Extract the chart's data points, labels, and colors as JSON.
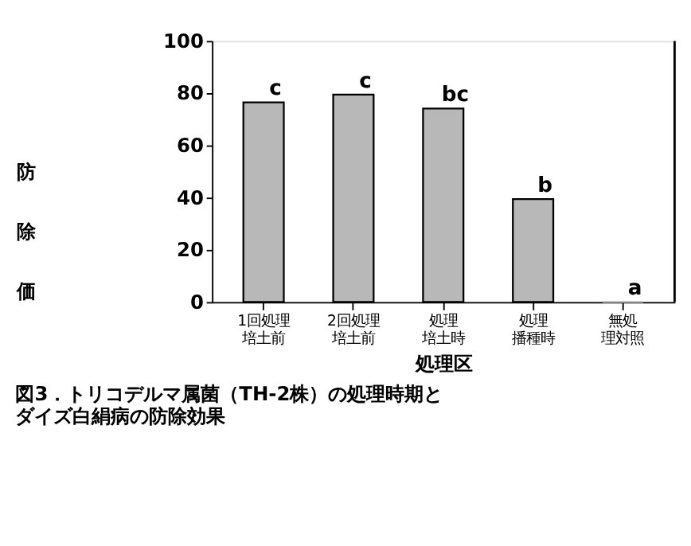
{
  "chart_data": {
    "type": "bar",
    "title": "図3．トリコデルマ属菌（TH-2株）の処理時期とダイズ白絹病の防除効果",
    "xlabel": "処理区",
    "ylabel": "防除価",
    "categories": [
      "1回処理培土前",
      "2回処理培土前",
      "処理培土時",
      "処理播種時",
      "無処理対照"
    ],
    "values": [
      76.5,
      79.4,
      74.1,
      39.4,
      0
    ],
    "color": "#b8b8b8",
    "ylim": [
      0,
      100
    ],
    "yticks": [
      0,
      20,
      40,
      60,
      80,
      100
    ],
    "annotations": [
      {
        "text": "c",
        "x": "1回処理培土前",
        "y": 76.5
      },
      {
        "text": "c",
        "x": "2回処理培土前",
        "y": 79.4
      },
      {
        "text": "bc",
        "x": "処理培土時",
        "y": 74.1
      },
      {
        "text": "b",
        "x": "処理播種時",
        "y": 39.4
      },
      {
        "text": "a",
        "x": "無処理対照",
        "y": 0
      }
    ],
    "grid": false
  }
}
